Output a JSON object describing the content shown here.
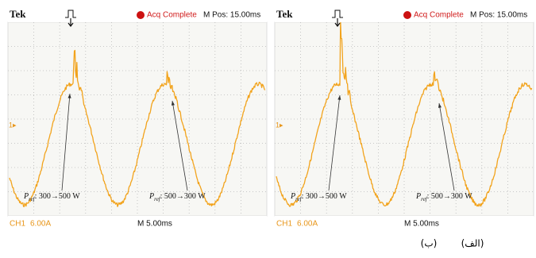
{
  "panels": [
    {
      "brand": "Tek",
      "status": "Acq Complete",
      "position": "M Pos: 15.00ms",
      "channel_marker": "1▸",
      "channel": "CH1",
      "scale": "6.00A",
      "timebase": "M 5.00ms",
      "annotations": [
        {
          "symbol": "P",
          "subscript": "ref",
          "text": ": 300→500 W"
        },
        {
          "symbol": "P",
          "subscript": "ref",
          "text": ": 500→300 W"
        }
      ]
    },
    {
      "brand": "Tek",
      "status": "Acq Complete",
      "position": "M Pos: 15.00ms",
      "channel_marker": "1▸",
      "channel": "CH1",
      "scale": "6.00A",
      "timebase": "M 5.00ms",
      "annotations": [
        {
          "symbol": "P",
          "subscript": "ref",
          "text": ": 300→500 W"
        },
        {
          "symbol": "P",
          "subscript": "ref",
          "text": ": 500→300 W"
        }
      ]
    }
  ],
  "captions": [
    "(الف)",
    "(ب)"
  ]
}
